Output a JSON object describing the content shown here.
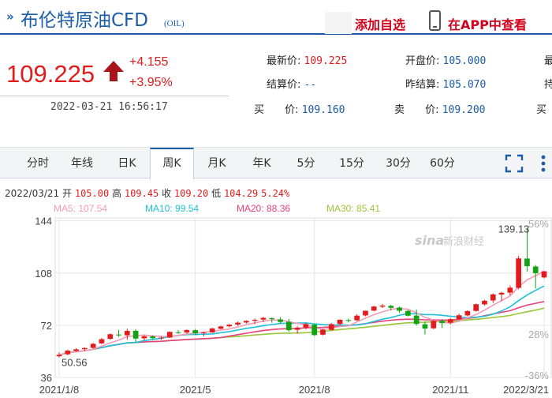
{
  "header": {
    "title": "布伦特原油CFD",
    "code": "(OIL)",
    "add_favorite": "添加自选",
    "view_in_app": "在APP中查看"
  },
  "quote": {
    "price": "109.225",
    "change": "+4.155",
    "change_pct": "+3.95%",
    "timestamp": "2022-03-21  16:56:17",
    "latest_label": "最新价:",
    "latest": "109.225",
    "settle_label": "结算价:",
    "settle": "--",
    "bid_label": "买",
    "bid_label2": "价:",
    "bid": "109.160",
    "open_label": "开盘价:",
    "open": "105.000",
    "prev_settle_label": "昨结算:",
    "prev_settle": "105.070",
    "ask_label": "卖",
    "ask_label2": "价:",
    "ask": "109.200",
    "cut_label_1": "最",
    "cut_label_2": "持",
    "cut_label_3": "买"
  },
  "tabs": [
    "分时",
    "年线",
    "日K",
    "周K",
    "月K",
    "年K",
    "5分",
    "15分",
    "30分",
    "60分"
  ],
  "active_tab": "周K",
  "chart_info": {
    "date": "2022/03/21",
    "open_label": "开",
    "open": "105.00",
    "high_label": "高",
    "high": "109.45",
    "close_label": "收",
    "close": "109.20",
    "low_label": "低",
    "low": "104.29",
    "pct": "5.24%",
    "ma5": "MA5: 107.54",
    "ma10": "MA10: 99.54",
    "ma20": "MA20: 88.36",
    "ma30": "MA30: 85.41"
  },
  "colors": {
    "up": "#e21c1c",
    "down": "#10a510",
    "ma5": "#f59bb5",
    "ma10": "#1ec0d8",
    "ma20": "#e8407a",
    "ma30": "#9cc63a",
    "brand": "#1a5ca8"
  },
  "chart_data": {
    "type": "candlestick",
    "interval": "weekly",
    "y_ticks": [
      36,
      72,
      108,
      144
    ],
    "ylim": [
      36,
      146
    ],
    "pct_ticks": [
      "56%",
      "28%",
      "-36%"
    ],
    "x_ticks": [
      "2021/1/8",
      "2021/5",
      "2021/8",
      "2021/11",
      "2022/3/21"
    ],
    "max_label": "139.13",
    "min_label": "50.56",
    "candles": [
      [
        50.6,
        53.2,
        49.8,
        51.6
      ],
      [
        52.0,
        55.1,
        51.2,
        54.5
      ],
      [
        54.3,
        56.2,
        53.6,
        55.4
      ],
      [
        55.5,
        56.8,
        54.2,
        56.3
      ],
      [
        56.4,
        59.8,
        55.9,
        59.2
      ],
      [
        59.5,
        63.2,
        59.0,
        62.4
      ],
      [
        62.6,
        66.4,
        62.0,
        65.8
      ],
      [
        65.6,
        68.9,
        64.0,
        65.2
      ],
      [
        65.1,
        69.6,
        62.1,
        68.1
      ],
      [
        68.2,
        69.3,
        60.5,
        62.8
      ],
      [
        63.0,
        65.1,
        61.5,
        64.4
      ],
      [
        64.3,
        65.0,
        62.3,
        63.1
      ],
      [
        63.2,
        64.2,
        61.8,
        63.5
      ],
      [
        63.5,
        67.8,
        63.2,
        67.4
      ],
      [
        67.2,
        68.6,
        66.0,
        66.8
      ],
      [
        67.0,
        69.2,
        66.2,
        68.7
      ],
      [
        68.6,
        69.4,
        65.3,
        66.5
      ],
      [
        66.6,
        67.5,
        64.5,
        67.1
      ],
      [
        67.0,
        70.2,
        66.8,
        69.8
      ],
      [
        69.6,
        71.7,
        69.1,
        71.2
      ],
      [
        71.3,
        72.8,
        70.6,
        72.4
      ],
      [
        72.5,
        74.6,
        71.6,
        73.8
      ],
      [
        73.9,
        75.4,
        73.1,
        75.0
      ],
      [
        75.1,
        76.6,
        72.8,
        75.8
      ],
      [
        75.9,
        77.8,
        74.2,
        77.1
      ],
      [
        76.9,
        77.3,
        73.8,
        76.2
      ],
      [
        76.0,
        77.6,
        73.1,
        74.3
      ],
      [
        74.4,
        76.3,
        67.5,
        68.6
      ],
      [
        68.9,
        71.4,
        66.2,
        70.3
      ],
      [
        70.5,
        73.6,
        69.2,
        72.8
      ],
      [
        72.4,
        73.0,
        64.6,
        65.2
      ],
      [
        65.5,
        69.7,
        65.0,
        68.9
      ],
      [
        68.8,
        73.6,
        68.4,
        72.8
      ],
      [
        72.9,
        76.1,
        72.0,
        75.8
      ],
      [
        75.6,
        76.6,
        74.0,
        75.2
      ],
      [
        75.4,
        79.6,
        75.0,
        78.6
      ],
      [
        78.8,
        82.1,
        78.2,
        82.0
      ],
      [
        82.1,
        85.5,
        81.6,
        84.9
      ],
      [
        84.8,
        86.7,
        83.9,
        85.6
      ],
      [
        85.4,
        86.1,
        82.1,
        84.0
      ],
      [
        84.2,
        84.9,
        80.5,
        82.0
      ],
      [
        81.9,
        82.6,
        78.1,
        78.6
      ],
      [
        78.7,
        82.9,
        71.8,
        72.9
      ],
      [
        72.7,
        74.6,
        65.7,
        69.7
      ],
      [
        69.9,
        75.8,
        69.3,
        75.1
      ],
      [
        75.0,
        76.3,
        70.1,
        73.6
      ],
      [
        73.8,
        77.0,
        72.6,
        76.2
      ],
      [
        76.3,
        79.9,
        75.8,
        78.9
      ],
      [
        78.8,
        82.3,
        78.2,
        81.8
      ],
      [
        81.9,
        86.9,
        81.5,
        86.5
      ],
      [
        86.4,
        89.5,
        85.6,
        88.9
      ],
      [
        89.1,
        94.0,
        87.4,
        93.3
      ],
      [
        93.2,
        95.0,
        88.7,
        94.4
      ],
      [
        94.5,
        99.4,
        92.6,
        97.9
      ],
      [
        97.8,
        119.8,
        96.8,
        118.1
      ],
      [
        118.0,
        139.1,
        109.0,
        112.7
      ],
      [
        112.5,
        113.5,
        97.4,
        107.9
      ],
      [
        105.0,
        109.45,
        104.29,
        109.2
      ]
    ]
  }
}
